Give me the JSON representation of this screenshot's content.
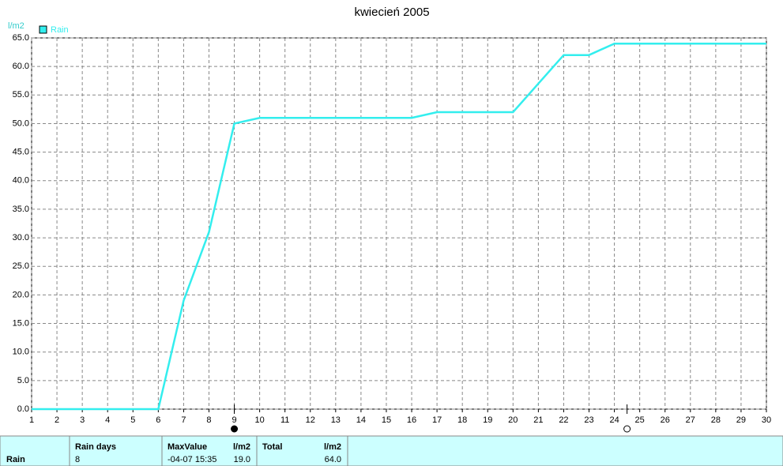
{
  "chart_data": {
    "type": "line",
    "title": "kwiecień 2005",
    "y_label": "l/m2",
    "x": [
      1,
      2,
      3,
      4,
      5,
      6,
      7,
      8,
      9,
      10,
      11,
      12,
      13,
      14,
      15,
      16,
      17,
      18,
      19,
      20,
      21,
      22,
      23,
      24,
      25,
      26,
      27,
      28,
      29,
      30
    ],
    "series": [
      {
        "name": "Rain",
        "color": "#33eeee",
        "values": [
          0,
          0,
          0,
          0,
          0,
          0,
          19,
          31,
          50,
          51,
          51,
          51,
          51,
          51,
          51,
          51,
          52,
          52,
          52,
          52,
          57,
          62,
          62,
          64,
          64,
          64,
          64,
          64,
          64,
          64
        ]
      }
    ],
    "xlim": [
      1,
      30
    ],
    "xticks": [
      1,
      2,
      3,
      4,
      5,
      6,
      7,
      8,
      9,
      10,
      11,
      12,
      13,
      14,
      15,
      16,
      17,
      18,
      19,
      20,
      21,
      22,
      23,
      24,
      25,
      26,
      27,
      28,
      29,
      30
    ],
    "ylim": [
      0,
      65
    ],
    "yticks": [
      {
        "value": 0,
        "label": "0.0"
      },
      {
        "value": 5,
        "label": "5.0"
      },
      {
        "value": 10,
        "label": "10.0"
      },
      {
        "value": 15,
        "label": "15.0"
      },
      {
        "value": 20,
        "label": "20.0"
      },
      {
        "value": 25,
        "label": "25.0"
      },
      {
        "value": 30,
        "label": "30.0"
      },
      {
        "value": 35,
        "label": "35.0"
      },
      {
        "value": 40,
        "label": "40.0"
      },
      {
        "value": 45,
        "label": "45.0"
      },
      {
        "value": 50,
        "label": "50.0"
      },
      {
        "value": 55,
        "label": "55.0"
      },
      {
        "value": 60,
        "label": "60.0"
      },
      {
        "value": 65,
        "label": "65.0"
      }
    ],
    "grid": true,
    "legend": "top-left",
    "markers": [
      {
        "x": 9,
        "fill": "#000000"
      },
      {
        "x": 24.5,
        "fill": "none"
      }
    ]
  },
  "summary": {
    "row_label": "Rain",
    "columns": [
      {
        "header": [
          "Rain days"
        ],
        "cells": [
          "8"
        ]
      },
      {
        "header": [
          "MaxValue",
          "l/m2"
        ],
        "cells": [
          "-04-07  15:35",
          "19.0"
        ]
      },
      {
        "header": [
          "Total",
          "l/m2"
        ],
        "cells": [
          "",
          "64.0"
        ]
      }
    ]
  }
}
